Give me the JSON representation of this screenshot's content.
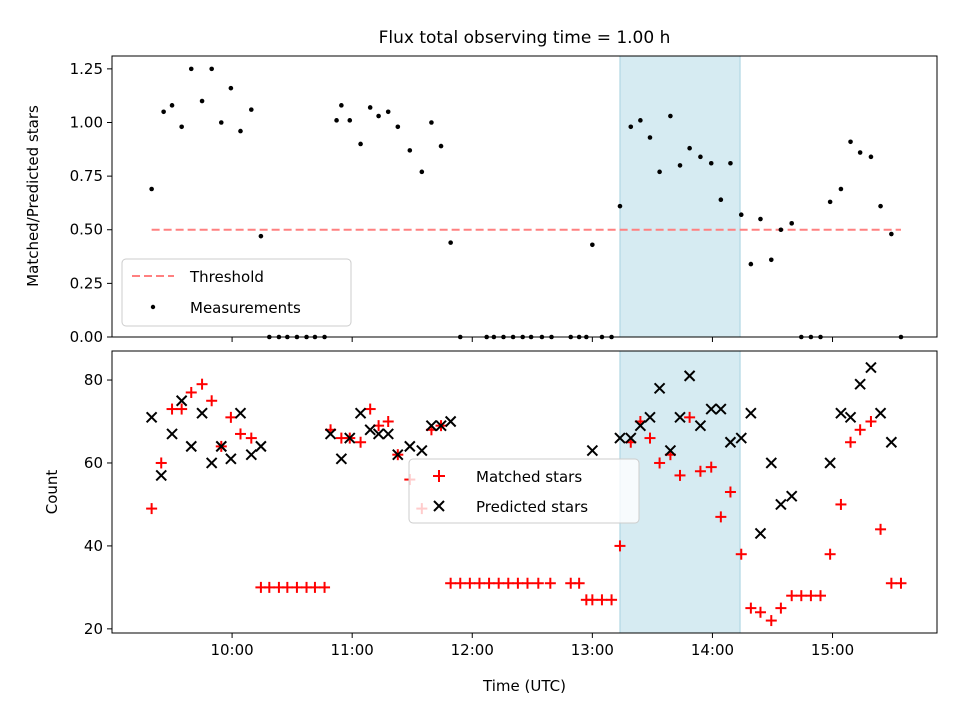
{
  "chart_data": [
    {
      "type": "scatter",
      "title": "Flux total observing time = 1.00 h",
      "xlabel": "",
      "ylabel": "Matched/Predicted stars",
      "ylim": [
        0,
        1.31
      ],
      "y_ticks": [
        "0.00",
        "0.25",
        "0.50",
        "0.75",
        "1.00",
        "1.25"
      ],
      "highlight_span_hours": [
        13.23,
        14.23
      ],
      "threshold": {
        "name": "Threshold",
        "value": 0.5,
        "x_range": [
          9.33,
          15.57
        ],
        "color": "#ff8080"
      },
      "legend_location": "lower-left",
      "series": [
        {
          "name": "Measurements",
          "color": "#000000",
          "x": [
            9.33,
            9.43,
            9.5,
            9.58,
            9.66,
            9.75,
            9.83,
            9.91,
            9.99,
            10.07,
            10.16,
            10.24,
            10.31,
            10.39,
            10.46,
            10.54,
            10.62,
            10.69,
            10.77,
            10.87,
            10.91,
            10.98,
            11.07,
            11.15,
            11.22,
            11.3,
            11.38,
            11.48,
            11.58,
            11.66,
            11.74,
            11.82,
            11.9,
            12.12,
            12.18,
            12.26,
            12.34,
            12.42,
            12.49,
            12.58,
            12.66,
            12.82,
            12.89,
            12.95,
            13.0,
            13.08,
            13.16,
            13.23,
            13.32,
            13.4,
            13.48,
            13.56,
            13.65,
            13.73,
            13.81,
            13.9,
            13.99,
            14.07,
            14.15,
            14.24,
            14.32,
            14.4,
            14.49,
            14.57,
            14.66,
            14.74,
            14.82,
            14.9,
            14.98,
            15.07,
            15.15,
            15.23,
            15.32,
            15.4,
            15.49,
            15.57
          ],
          "y": [
            0.69,
            1.05,
            1.08,
            0.98,
            1.25,
            1.1,
            1.25,
            1.0,
            1.16,
            0.96,
            1.06,
            0.47,
            0,
            0,
            0,
            0,
            0,
            0,
            0,
            1.01,
            1.08,
            1.01,
            0.9,
            1.07,
            1.03,
            1.05,
            0.98,
            0.87,
            0.77,
            1.0,
            0.89,
            0.44,
            0,
            0,
            0,
            0,
            0,
            0,
            0,
            0,
            0,
            0,
            0,
            0,
            0.43,
            0,
            0,
            0.61,
            0.98,
            1.01,
            0.93,
            0.77,
            1.03,
            0.8,
            0.88,
            0.84,
            0.81,
            0.64,
            0.81,
            0.57,
            0.34,
            0.55,
            0.36,
            0.5,
            0.53,
            0,
            0,
            0,
            0.63,
            0.69,
            0.91,
            0.86,
            0.84,
            0.61,
            0.48,
            0
          ]
        }
      ]
    },
    {
      "type": "scatter",
      "title": "",
      "xlabel": "Time (UTC)",
      "ylabel": "Count",
      "ylim": [
        19,
        87
      ],
      "y_ticks": [
        "20",
        "40",
        "60",
        "80"
      ],
      "x_ticks": [
        "10:00",
        "11:00",
        "12:00",
        "13:00",
        "14:00",
        "15:00"
      ],
      "x_tick_hours": [
        10,
        11,
        12,
        13,
        14,
        15
      ],
      "xlim_hours": [
        9.0,
        15.87
      ],
      "highlight_span_hours": [
        13.23,
        14.23
      ],
      "legend_location": "center",
      "series": [
        {
          "name": "Matched stars",
          "marker": "+",
          "color": "#ff0000",
          "x": [
            9.33,
            9.41,
            9.5,
            9.58,
            9.66,
            9.75,
            9.83,
            9.91,
            9.99,
            10.07,
            10.16,
            10.24,
            10.31,
            10.39,
            10.46,
            10.54,
            10.62,
            10.69,
            10.77,
            10.82,
            10.91,
            10.98,
            11.07,
            11.15,
            11.22,
            11.3,
            11.38,
            11.48,
            11.58,
            11.66,
            11.74,
            11.82,
            11.9,
            11.98,
            12.06,
            12.14,
            12.22,
            12.3,
            12.38,
            12.46,
            12.55,
            12.65,
            12.82,
            12.89,
            12.95,
            13.0,
            13.08,
            13.16,
            13.23,
            13.32,
            13.4,
            13.48,
            13.56,
            13.65,
            13.73,
            13.81,
            13.9,
            13.99,
            14.07,
            14.15,
            14.24,
            14.32,
            14.4,
            14.49,
            14.57,
            14.66,
            14.74,
            14.82,
            14.9,
            14.98,
            15.07,
            15.15,
            15.23,
            15.32,
            15.4,
            15.49,
            15.57
          ],
          "y": [
            49,
            60,
            73,
            73,
            77,
            79,
            75,
            64,
            71,
            67,
            66,
            30,
            30,
            30,
            30,
            30,
            30,
            30,
            30,
            68,
            66,
            66,
            65,
            73,
            69,
            70,
            62,
            56,
            49,
            68,
            69,
            31,
            31,
            31,
            31,
            31,
            31,
            31,
            31,
            31,
            31,
            31,
            31,
            31,
            27,
            27,
            27,
            27,
            40,
            65,
            70,
            66,
            60,
            62,
            57,
            71,
            58,
            59,
            47,
            53,
            38,
            25,
            24,
            22,
            25,
            28,
            28,
            28,
            28,
            38,
            50,
            65,
            68,
            70,
            44,
            31,
            31
          ]
        },
        {
          "name": "Predicted stars",
          "marker": "x",
          "color": "#000000",
          "x": [
            9.33,
            9.41,
            9.5,
            9.58,
            9.66,
            9.75,
            9.83,
            9.91,
            9.99,
            10.07,
            10.16,
            10.24,
            10.82,
            10.91,
            10.98,
            11.07,
            11.15,
            11.22,
            11.3,
            11.38,
            11.48,
            11.58,
            11.66,
            11.74,
            11.82,
            13.0,
            13.23,
            13.32,
            13.4,
            13.48,
            13.56,
            13.65,
            13.73,
            13.81,
            13.9,
            13.99,
            14.07,
            14.15,
            14.24,
            14.32,
            14.4,
            14.49,
            14.57,
            14.66,
            14.98,
            15.07,
            15.15,
            15.23,
            15.32,
            15.4,
            15.49
          ],
          "y": [
            71,
            57,
            67,
            75,
            64,
            72,
            60,
            64,
            61,
            72,
            62,
            64,
            67,
            61,
            66,
            72,
            68,
            67,
            67,
            62,
            64,
            63,
            69,
            69,
            70,
            63,
            66,
            66,
            69,
            71,
            78,
            63,
            71,
            81,
            69,
            73,
            73,
            65,
            66,
            72,
            43,
            60,
            50,
            52,
            60,
            72,
            71,
            79,
            83,
            72,
            65
          ]
        }
      ]
    }
  ]
}
